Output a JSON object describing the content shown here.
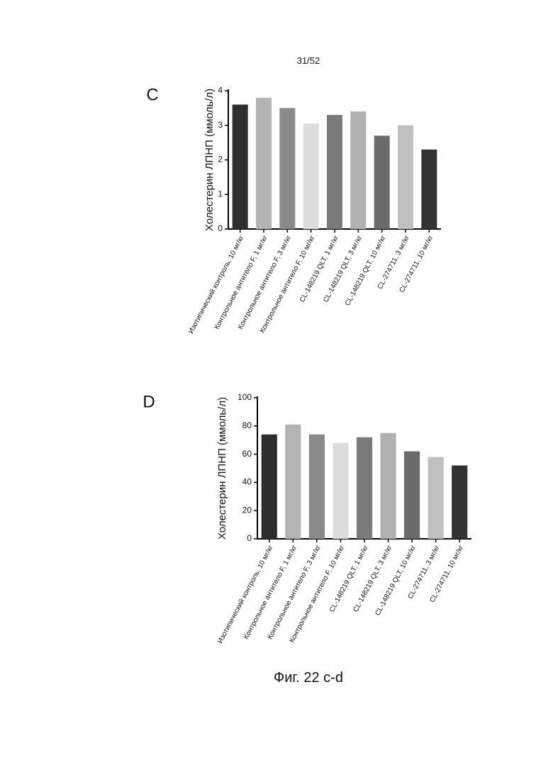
{
  "page_number": "31/52",
  "caption": "Фиг. 22 с-d",
  "chart_data": [
    {
      "type": "bar",
      "panel": "C",
      "ylabel": "Холестерин ЛПНП (ммоль/л)",
      "categories": [
        "Изотипический контроль, 10 мг/кг",
        "Контрольное антитело F, 1 мг/кг",
        "Контрольное антитело F, 3 мг/кг",
        "Контрольное антитело F, 10 мг/кг",
        "CL-148219 QLT, 1 мг/кг",
        "CL-148219 QLT, 3 мг/кг",
        "CL-148219 QLT, 10 мг/кг",
        "CL-274711, 3 мг/кг",
        "CL-274711, 10 мг/кг"
      ],
      "values": [
        3.6,
        3.8,
        3.5,
        3.05,
        3.3,
        3.4,
        2.7,
        3.0,
        2.3
      ],
      "colors": [
        "#2e2e2e",
        "#b4b4b4",
        "#8a8a8a",
        "#dcdcdc",
        "#7a7a7a",
        "#b0b0b0",
        "#6a6a6a",
        "#c0c0c0",
        "#333333"
      ],
      "ylim": [
        0,
        4
      ],
      "yticks": [
        0,
        1,
        2,
        3,
        4
      ]
    },
    {
      "type": "bar",
      "panel": "D",
      "ylabel": "Холестерин ЛПНП (ммоль/л)",
      "categories": [
        "Изотипический контроль, 10 мг/кг",
        "Контрольное антитело F, 1 мг/кг",
        "Контрольное антитело F, 3 мг/кг",
        "Контрольное антитело F, 10 мг/кг",
        "CL-148219 QLT, 1 мг/кг",
        "CL-148219 QLT, 3 мг/кг",
        "CL-148219 QLT, 10 мг/кг",
        "CL-274711, 3 мг/кг",
        "CL-274711, 10 мг/кг"
      ],
      "values": [
        74,
        81,
        74,
        68,
        72,
        75,
        62,
        58,
        52
      ],
      "colors": [
        "#2e2e2e",
        "#b4b4b4",
        "#8a8a8a",
        "#dcdcdc",
        "#7a7a7a",
        "#b0b0b0",
        "#6a6a6a",
        "#c0c0c0",
        "#333333"
      ],
      "ylim": [
        0,
        100
      ],
      "yticks": [
        0,
        20,
        40,
        60,
        80,
        100
      ]
    }
  ]
}
